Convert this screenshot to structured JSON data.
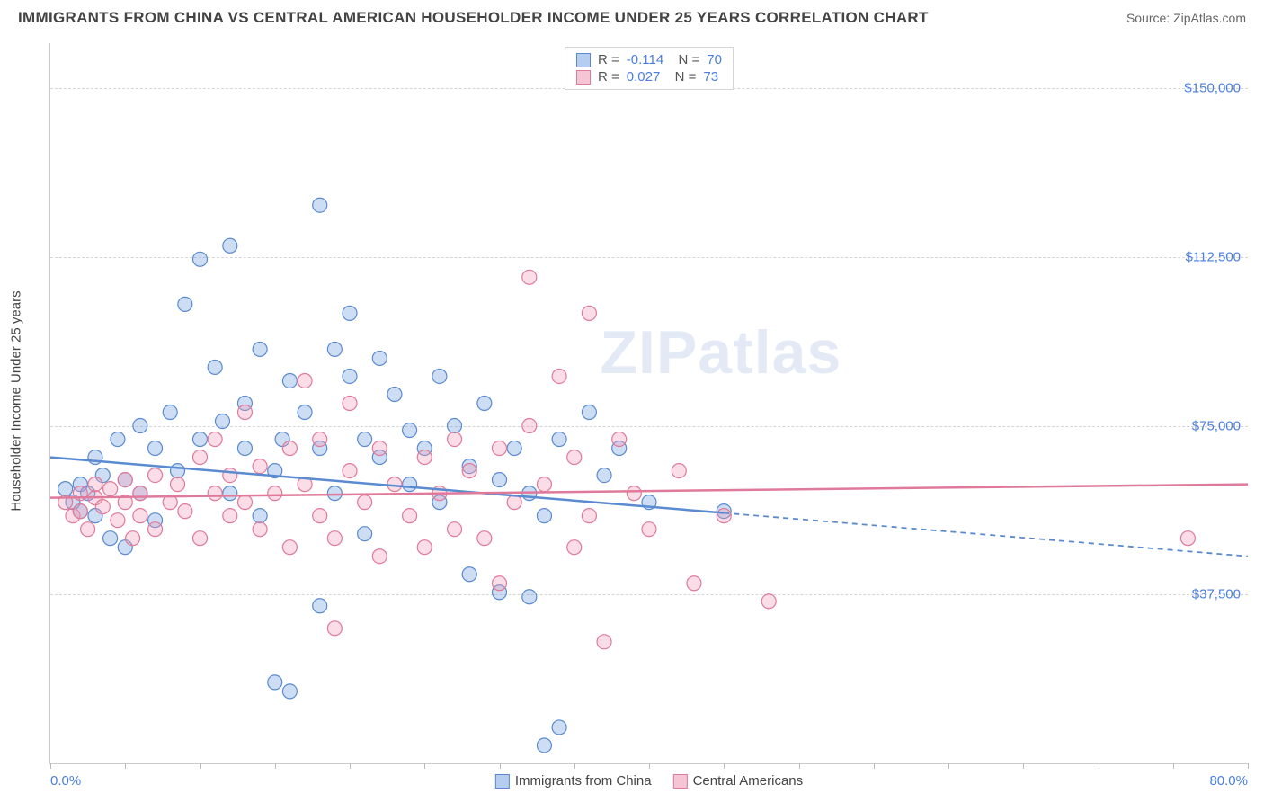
{
  "header": {
    "title": "IMMIGRANTS FROM CHINA VS CENTRAL AMERICAN HOUSEHOLDER INCOME UNDER 25 YEARS CORRELATION CHART",
    "source": "Source: ZipAtlas.com"
  },
  "watermark": "ZIPatlas",
  "chart": {
    "type": "scatter",
    "ylabel": "Householder Income Under 25 years",
    "xlim": [
      0,
      80
    ],
    "ylim": [
      0,
      160000
    ],
    "xticks_minor_step": 5,
    "yticks": [
      37500,
      75000,
      112500,
      150000
    ],
    "ytick_labels": [
      "$37,500",
      "$75,000",
      "$112,500",
      "$150,000"
    ],
    "xaxis_min_label": "0.0%",
    "xaxis_max_label": "80.0%",
    "background_color": "#ffffff",
    "grid_color": "#d5d5d5",
    "tick_label_color": "#4a7ee0",
    "axis_label_color": "#444444",
    "marker_radius": 8,
    "marker_fill_opacity": 0.35,
    "series": [
      {
        "name": "Immigrants from China",
        "color": "#6f9fe0",
        "stroke": "#5a8ad0",
        "R": "-0.114",
        "N": "70",
        "trend": {
          "y_at_xmin": 68000,
          "y_at_xmax": 46000,
          "solid_until_x": 45
        },
        "points": [
          [
            1,
            61000
          ],
          [
            1.5,
            58000
          ],
          [
            2,
            56000
          ],
          [
            2,
            62000
          ],
          [
            2.5,
            60000
          ],
          [
            3,
            68000
          ],
          [
            3,
            55000
          ],
          [
            3.5,
            64000
          ],
          [
            4,
            50000
          ],
          [
            4.5,
            72000
          ],
          [
            5,
            63000
          ],
          [
            5,
            48000
          ],
          [
            6,
            75000
          ],
          [
            6,
            60000
          ],
          [
            7,
            70000
          ],
          [
            7,
            54000
          ],
          [
            8,
            78000
          ],
          [
            8.5,
            65000
          ],
          [
            9,
            102000
          ],
          [
            10,
            72000
          ],
          [
            10,
            112000
          ],
          [
            11,
            88000
          ],
          [
            11.5,
            76000
          ],
          [
            12,
            115000
          ],
          [
            12,
            60000
          ],
          [
            13,
            80000
          ],
          [
            13,
            70000
          ],
          [
            14,
            55000
          ],
          [
            14,
            92000
          ],
          [
            15,
            65000
          ],
          [
            15,
            18000
          ],
          [
            15.5,
            72000
          ],
          [
            16,
            85000
          ],
          [
            16,
            16000
          ],
          [
            17,
            78000
          ],
          [
            18,
            124000
          ],
          [
            18,
            70000
          ],
          [
            18,
            35000
          ],
          [
            19,
            92000
          ],
          [
            19,
            60000
          ],
          [
            20,
            100000
          ],
          [
            20,
            86000
          ],
          [
            21,
            72000
          ],
          [
            21,
            51000
          ],
          [
            22,
            90000
          ],
          [
            22,
            68000
          ],
          [
            23,
            82000
          ],
          [
            24,
            74000
          ],
          [
            24,
            62000
          ],
          [
            25,
            70000
          ],
          [
            26,
            86000
          ],
          [
            26,
            58000
          ],
          [
            27,
            75000
          ],
          [
            28,
            66000
          ],
          [
            28,
            42000
          ],
          [
            29,
            80000
          ],
          [
            30,
            63000
          ],
          [
            30,
            38000
          ],
          [
            31,
            70000
          ],
          [
            32,
            60000
          ],
          [
            32,
            37000
          ],
          [
            33,
            55000
          ],
          [
            33,
            4000
          ],
          [
            34,
            72000
          ],
          [
            34,
            8000
          ],
          [
            36,
            78000
          ],
          [
            37,
            64000
          ],
          [
            38,
            70000
          ],
          [
            40,
            58000
          ],
          [
            45,
            56000
          ]
        ]
      },
      {
        "name": "Central Americans",
        "color": "#f09fb8",
        "stroke": "#e07a9a",
        "R": "0.027",
        "N": "73",
        "trend": {
          "y_at_xmin": 59000,
          "y_at_xmax": 62000,
          "solid_until_x": 80
        },
        "points": [
          [
            1,
            58000
          ],
          [
            1.5,
            55000
          ],
          [
            2,
            56000
          ],
          [
            2,
            60000
          ],
          [
            2.5,
            52000
          ],
          [
            3,
            59000
          ],
          [
            3,
            62000
          ],
          [
            3.5,
            57000
          ],
          [
            4,
            61000
          ],
          [
            4.5,
            54000
          ],
          [
            5,
            63000
          ],
          [
            5,
            58000
          ],
          [
            5.5,
            50000
          ],
          [
            6,
            60000
          ],
          [
            6,
            55000
          ],
          [
            7,
            64000
          ],
          [
            7,
            52000
          ],
          [
            8,
            58000
          ],
          [
            8.5,
            62000
          ],
          [
            9,
            56000
          ],
          [
            10,
            68000
          ],
          [
            10,
            50000
          ],
          [
            11,
            60000
          ],
          [
            11,
            72000
          ],
          [
            12,
            55000
          ],
          [
            12,
            64000
          ],
          [
            13,
            58000
          ],
          [
            13,
            78000
          ],
          [
            14,
            52000
          ],
          [
            14,
            66000
          ],
          [
            15,
            60000
          ],
          [
            16,
            70000
          ],
          [
            16,
            48000
          ],
          [
            17,
            62000
          ],
          [
            17,
            85000
          ],
          [
            18,
            55000
          ],
          [
            18,
            72000
          ],
          [
            19,
            50000
          ],
          [
            19,
            30000
          ],
          [
            20,
            65000
          ],
          [
            20,
            80000
          ],
          [
            21,
            58000
          ],
          [
            22,
            70000
          ],
          [
            22,
            46000
          ],
          [
            23,
            62000
          ],
          [
            24,
            55000
          ],
          [
            25,
            68000
          ],
          [
            25,
            48000
          ],
          [
            26,
            60000
          ],
          [
            27,
            72000
          ],
          [
            27,
            52000
          ],
          [
            28,
            65000
          ],
          [
            29,
            50000
          ],
          [
            30,
            70000
          ],
          [
            30,
            40000
          ],
          [
            31,
            58000
          ],
          [
            32,
            75000
          ],
          [
            32,
            108000
          ],
          [
            33,
            62000
          ],
          [
            34,
            86000
          ],
          [
            35,
            68000
          ],
          [
            35,
            48000
          ],
          [
            36,
            100000
          ],
          [
            36,
            55000
          ],
          [
            37,
            27000
          ],
          [
            38,
            72000
          ],
          [
            39,
            60000
          ],
          [
            40,
            52000
          ],
          [
            42,
            65000
          ],
          [
            43,
            40000
          ],
          [
            45,
            55000
          ],
          [
            48,
            36000
          ],
          [
            76,
            50000
          ]
        ]
      }
    ],
    "legend_bottom": [
      {
        "label": "Immigrants from China",
        "fill": "#b5cdf0",
        "stroke": "#5a8ad0"
      },
      {
        "label": "Central Americans",
        "fill": "#f5c5d5",
        "stroke": "#e07a9a"
      }
    ]
  }
}
